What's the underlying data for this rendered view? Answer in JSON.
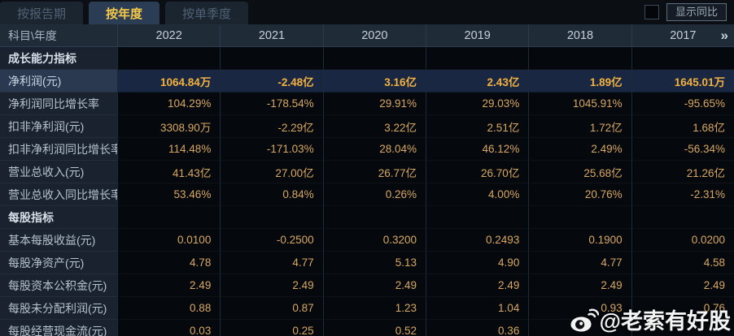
{
  "tabs": [
    {
      "label": "按报告期",
      "active": false
    },
    {
      "label": "按年度",
      "active": true
    },
    {
      "label": "按单季度",
      "active": false
    }
  ],
  "controls": {
    "show_yoy_label": "显示同比",
    "checkbox_checked": false
  },
  "table": {
    "corner_label": "科目\\年度",
    "years": [
      "2022",
      "2021",
      "2020",
      "2019",
      "2018",
      "2017"
    ],
    "more_icon": "»",
    "rows": [
      {
        "type": "section",
        "label": "成长能力指标",
        "values": [
          "",
          "",
          "",
          "",
          "",
          ""
        ]
      },
      {
        "type": "highlight",
        "label": "净利润(元)",
        "values": [
          "1064.84万",
          "-2.48亿",
          "3.16亿",
          "2.43亿",
          "1.89亿",
          "1645.01万"
        ]
      },
      {
        "type": "data",
        "label": "净利润同比增长率",
        "values": [
          "104.29%",
          "-178.54%",
          "29.91%",
          "29.03%",
          "1045.91%",
          "-95.65%"
        ]
      },
      {
        "type": "data",
        "label": "扣非净利润(元)",
        "values": [
          "3308.90万",
          "-2.29亿",
          "3.22亿",
          "2.51亿",
          "1.72亿",
          "1.68亿"
        ]
      },
      {
        "type": "data",
        "label": "扣非净利润同比增长率",
        "values": [
          "114.48%",
          "-171.03%",
          "28.04%",
          "46.12%",
          "2.49%",
          "-56.34%"
        ]
      },
      {
        "type": "data",
        "label": "营业总收入(元)",
        "values": [
          "41.43亿",
          "27.00亿",
          "26.77亿",
          "26.70亿",
          "25.68亿",
          "21.26亿"
        ]
      },
      {
        "type": "data",
        "label": "营业总收入同比增长率",
        "values": [
          "53.46%",
          "0.84%",
          "0.26%",
          "4.00%",
          "20.76%",
          "-2.31%"
        ]
      },
      {
        "type": "section",
        "label": "每股指标",
        "values": [
          "",
          "",
          "",
          "",
          "",
          ""
        ]
      },
      {
        "type": "data",
        "label": "基本每股收益(元)",
        "values": [
          "0.0100",
          "-0.2500",
          "0.3200",
          "0.2493",
          "0.1900",
          "0.0200"
        ]
      },
      {
        "type": "data",
        "label": "每股净资产(元)",
        "values": [
          "4.78",
          "4.77",
          "5.13",
          "4.90",
          "4.77",
          "4.58"
        ]
      },
      {
        "type": "data",
        "label": "每股资本公积金(元)",
        "values": [
          "2.49",
          "2.49",
          "2.49",
          "2.49",
          "2.49",
          "2.49"
        ]
      },
      {
        "type": "data",
        "label": "每股未分配利润(元)",
        "values": [
          "0.88",
          "0.87",
          "1.23",
          "1.04",
          "0.93",
          "0.76"
        ]
      },
      {
        "type": "data",
        "label": "每股经营现金流(元)",
        "values": [
          "0.03",
          "0.25",
          "0.52",
          "0.36",
          "",
          ""
        ]
      }
    ]
  },
  "watermark": {
    "text": "@老索有好股",
    "icon": "weibo-icon"
  },
  "colors": {
    "accent_gold": "#f7c94a",
    "value_gold": "#d8a862",
    "highlight_value": "#f3b140",
    "highlight_row_bg": "#192742",
    "label_col_bg": "#19222e",
    "header_bg": "#202b38",
    "tab_active_bg": "#2b3d54",
    "data_cell_bg": "#05080c"
  }
}
